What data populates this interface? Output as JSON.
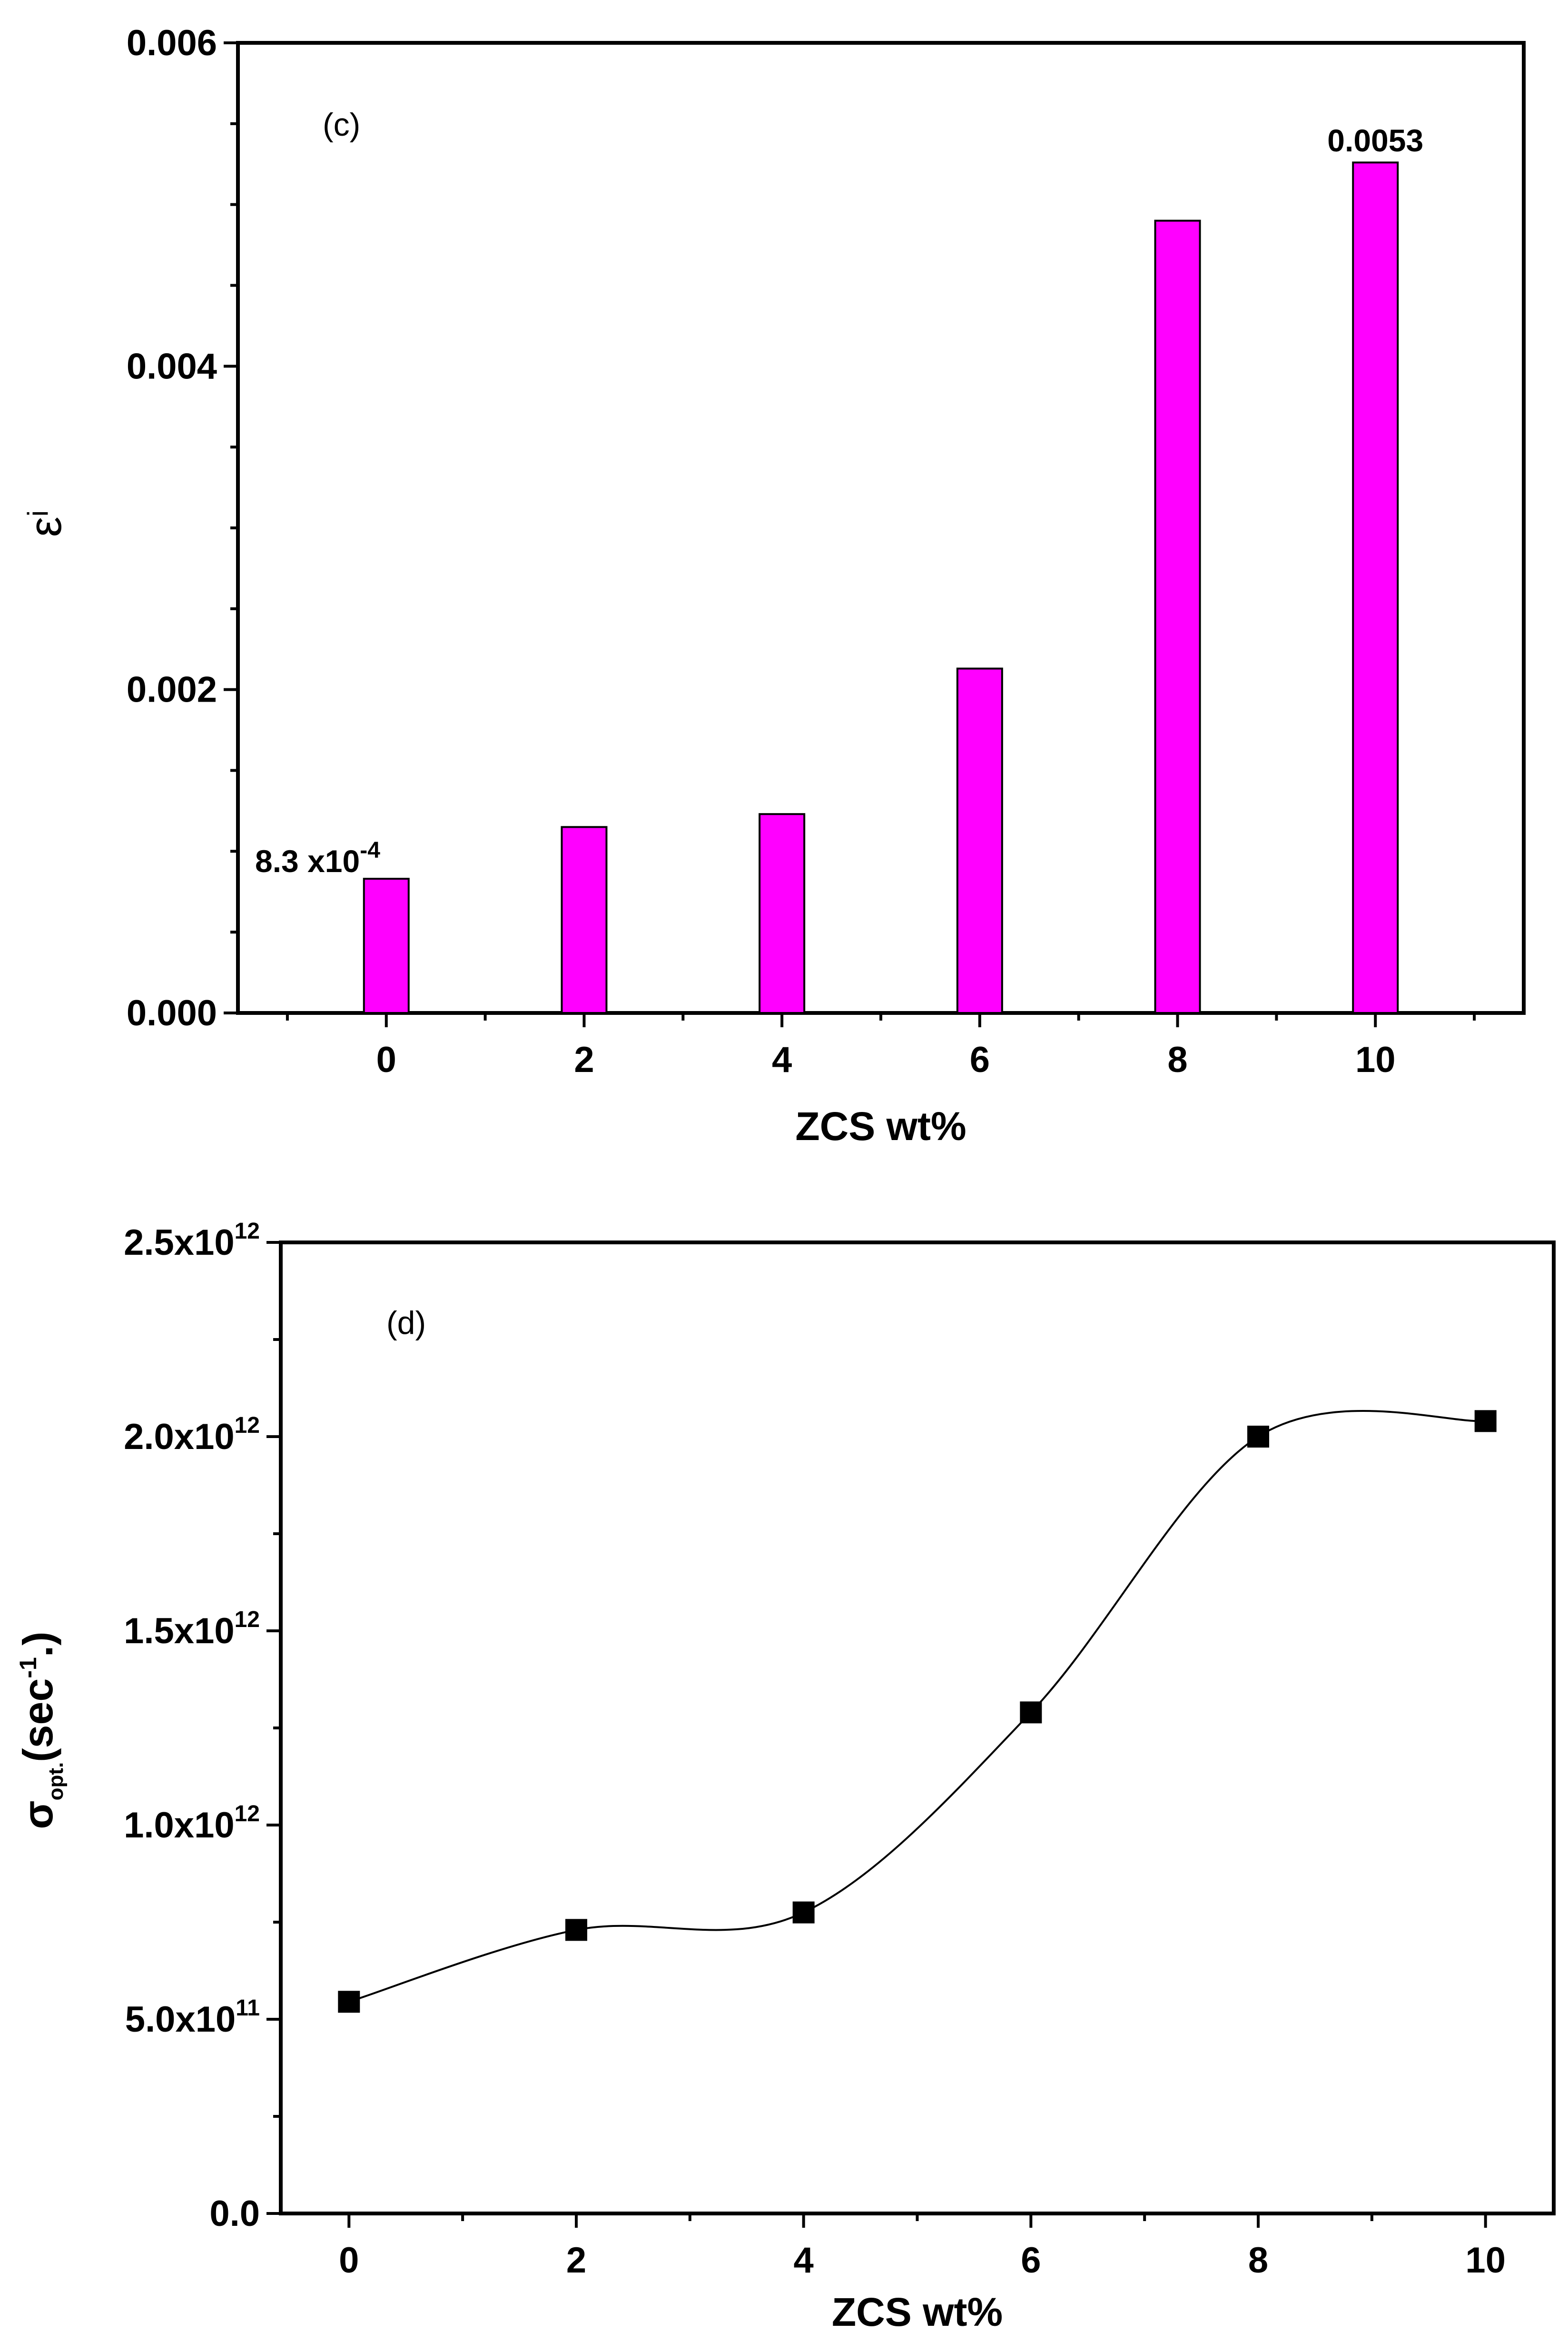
{
  "chart_data": [
    {
      "type": "bar",
      "panel_label": "(c)",
      "categories": [
        "0",
        "2",
        "4",
        "6",
        "8",
        "10"
      ],
      "x": [
        0,
        2,
        4,
        6,
        8,
        10
      ],
      "values": [
        0.00083,
        0.00115,
        0.00123,
        0.00213,
        0.0049,
        0.00526
      ],
      "bar_color": "#ff00ff",
      "xlabel": "ZCS wt%",
      "ylabel": {
        "base": "ε",
        "sub": "i"
      },
      "xlim": [
        -1.5,
        11.5
      ],
      "ylim": [
        0,
        0.006
      ],
      "xticks": [
        "0",
        "2",
        "4",
        "6",
        "8",
        "10"
      ],
      "yticks": [
        "0.000",
        "0.002",
        "0.004",
        "0.006"
      ],
      "annotations": [
        {
          "x": 0,
          "mantissa": "8.3 x10",
          "exponent": "-4"
        },
        {
          "x": 10,
          "text": "0.0053"
        }
      ]
    },
    {
      "type": "line",
      "marker": "square",
      "smooth": true,
      "panel_label": "(d)",
      "x": [
        0,
        2,
        4,
        6,
        8,
        10
      ],
      "values": [
        545000000000.0,
        730000000000.0,
        775000000000.0,
        1290000000000.0,
        2000000000000.0,
        2040000000000.0
      ],
      "xlabel": "ZCS wt%",
      "ylabel": {
        "base": "σ",
        "sub": "opt.",
        "unit_open": "(sec",
        "sup": "-1",
        "unit_close": ".)"
      },
      "xlim": [
        -0.6,
        10.6
      ],
      "ylim": [
        0,
        2500000000000.0
      ],
      "xticks": [
        "0",
        "2",
        "4",
        "6",
        "8",
        "10"
      ],
      "yticks": [
        {
          "mantissa": "0.0",
          "exp": ""
        },
        {
          "mantissa": "5.0x10",
          "exp": "11"
        },
        {
          "mantissa": "1.0x10",
          "exp": "12"
        },
        {
          "mantissa": "1.5x10",
          "exp": "12"
        },
        {
          "mantissa": "2.0x10",
          "exp": "12"
        },
        {
          "mantissa": "2.5x10",
          "exp": "12"
        }
      ]
    }
  ]
}
